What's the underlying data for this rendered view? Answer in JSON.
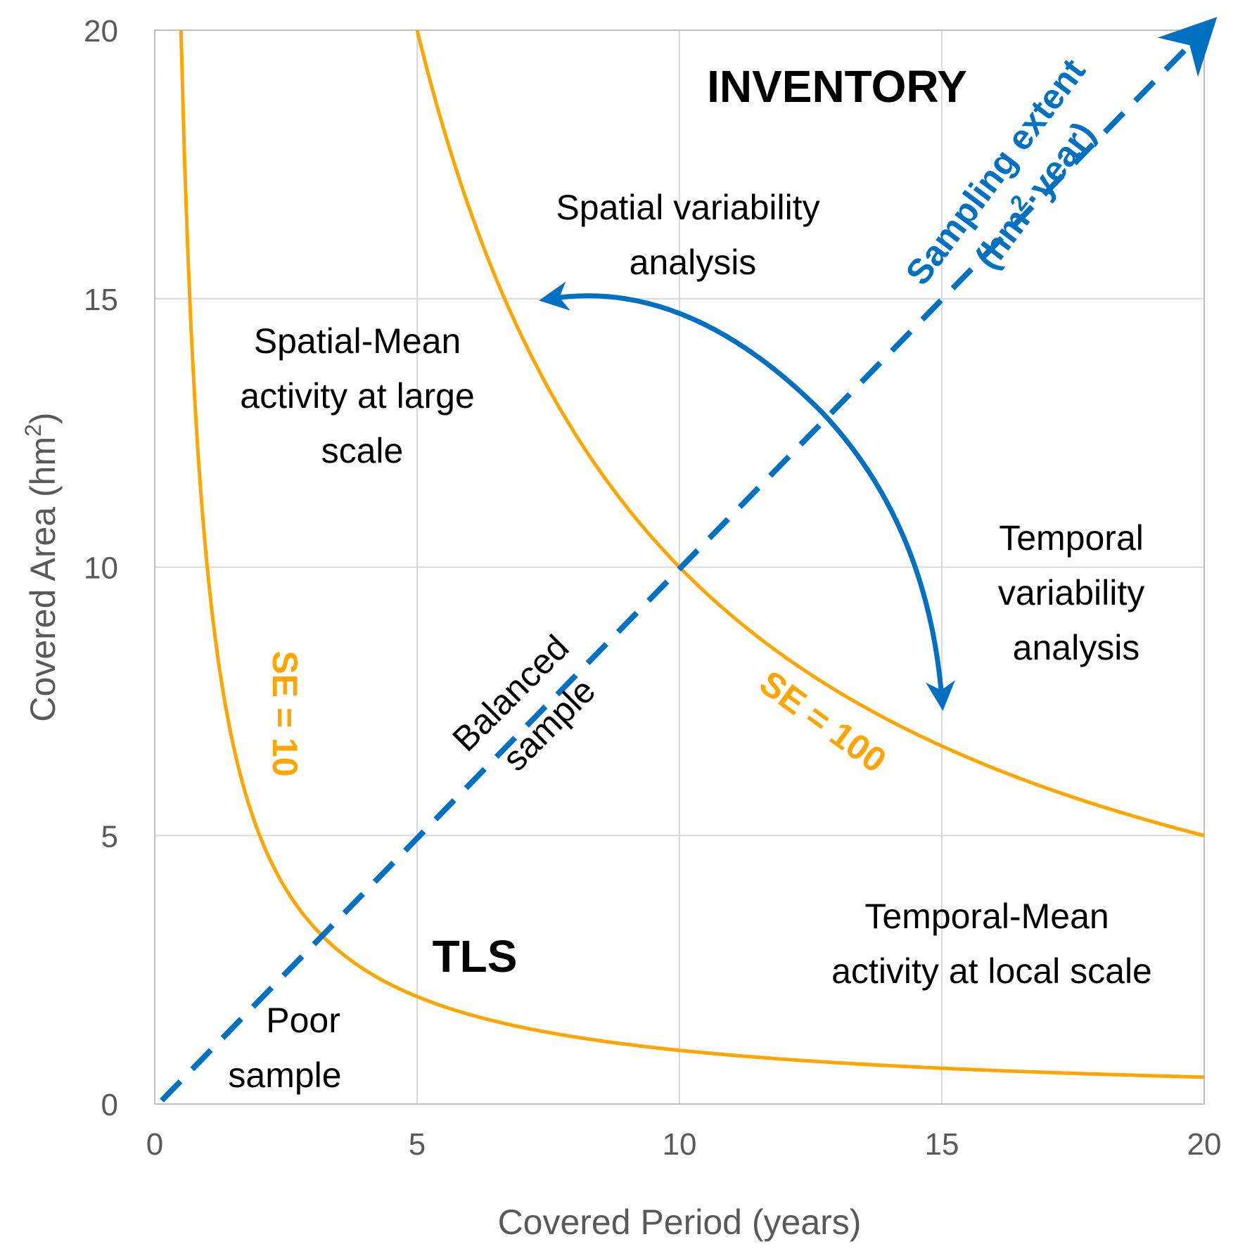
{
  "chart_data": {
    "type": "line",
    "xlabel": "Covered Period (years)",
    "ylabel_main": "Covered Area (hm",
    "ylabel_sup": "2",
    "ylabel_tail": ")",
    "xlim": [
      0,
      20
    ],
    "ylim": [
      0,
      20
    ],
    "x_ticks": [
      0,
      5,
      10,
      15,
      20
    ],
    "y_ticks": [
      0,
      5,
      10,
      15,
      20
    ],
    "grid": true,
    "series": [
      {
        "name": "SE = 10",
        "equation": "x*y=10",
        "color": "#ffa500",
        "x_range": [
          0.5,
          20
        ]
      },
      {
        "name": "SE = 100",
        "equation": "x*y=100",
        "color": "#ffa500",
        "x_range": [
          5,
          20
        ]
      }
    ],
    "diagonal": {
      "name": "Balanced sample",
      "color": "#0070c0",
      "from": [
        0,
        0
      ],
      "to": [
        20,
        20
      ],
      "label_line1": "Sampling extent",
      "label_line2_a": "(hm",
      "label_line2_sup": "2",
      "label_line2_b": "·year)"
    },
    "curved_arrow": {
      "color": "#0070c0",
      "from": [
        12.7,
        12.9
      ],
      "to_top": [
        7.5,
        15
      ],
      "to_bottom": [
        15,
        7.5
      ]
    },
    "annotations": {
      "inventory": "INVENTORY",
      "tls": "TLS",
      "spatial_variability": [
        "Spatial variability",
        "analysis"
      ],
      "spatial_mean": [
        "Spatial-Mean",
        "activity at large",
        "scale"
      ],
      "temporal_variability": [
        "Temporal",
        "variability",
        "analysis"
      ],
      "temporal_mean": [
        "Temporal-Mean",
        "activity at local scale"
      ],
      "balanced": [
        "Balanced",
        "sample"
      ],
      "poor": [
        "Poor",
        "sample"
      ],
      "se10": "SE = 10",
      "se100": "SE = 100"
    }
  }
}
